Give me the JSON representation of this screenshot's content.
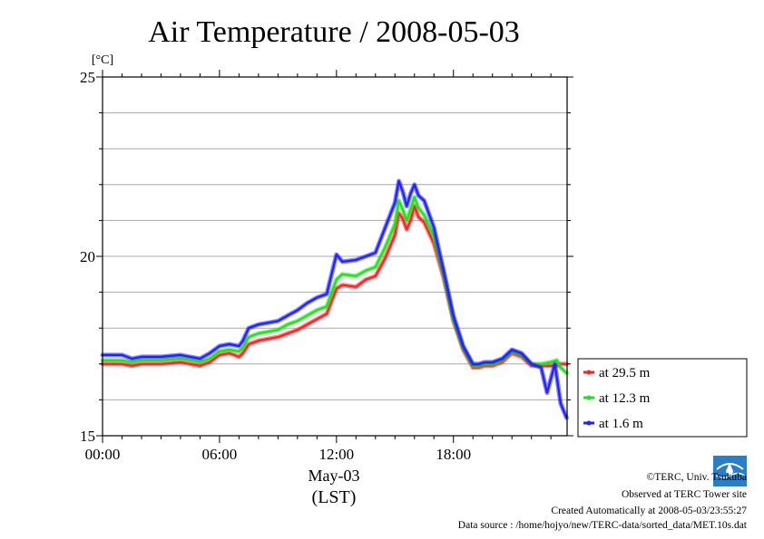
{
  "chart_data": {
    "type": "line",
    "title": "Air Temperature / 2008-05-03",
    "yunit": "[°C]",
    "ylim": [
      15,
      25
    ],
    "yticks": [
      15,
      20,
      25
    ],
    "xlim": [
      0,
      23.83
    ],
    "xticks": [
      {
        "value": 0,
        "label": "00:00"
      },
      {
        "value": 6,
        "label": "06:00"
      },
      {
        "value": 12,
        "label": "12:00"
      },
      {
        "value": 18,
        "label": "18:00"
      }
    ],
    "xlabel": "May-03",
    "xlabel2": "(LST)",
    "grid": true,
    "legend_position": "right",
    "series": [
      {
        "name": "at 29.5 m",
        "color": "#ff2020",
        "x": [
          0,
          1,
          1.5,
          2,
          3,
          4,
          4.5,
          5,
          5.5,
          6,
          6.5,
          7,
          7.2,
          7.5,
          8,
          8.5,
          9,
          9.5,
          10,
          10.5,
          11,
          11.5,
          12,
          12.3,
          13,
          13.5,
          14,
          14.5,
          15,
          15.2,
          15.4,
          15.6,
          15.8,
          16,
          16.2,
          16.5,
          17,
          17.5,
          18,
          18.5,
          19,
          19.3,
          19.6,
          20,
          20.5,
          21,
          21.5,
          22,
          22.5,
          23,
          23.3,
          23.5,
          23.8
        ],
        "values": [
          17.0,
          17.0,
          16.95,
          17.0,
          17.0,
          17.05,
          17.0,
          16.95,
          17.05,
          17.25,
          17.3,
          17.2,
          17.3,
          17.55,
          17.65,
          17.7,
          17.75,
          17.85,
          17.95,
          18.1,
          18.25,
          18.4,
          19.1,
          19.2,
          19.15,
          19.35,
          19.45,
          19.95,
          20.6,
          21.2,
          21.05,
          20.75,
          21.0,
          21.4,
          21.1,
          20.95,
          20.35,
          19.4,
          18.2,
          17.4,
          16.9,
          16.9,
          16.95,
          16.95,
          17.05,
          17.3,
          17.2,
          16.95,
          16.95,
          16.95,
          16.95,
          17.0,
          17.0
        ]
      },
      {
        "name": "at 12.3 m",
        "color": "#20e020",
        "x": [
          0,
          1,
          1.5,
          2,
          3,
          4,
          4.5,
          5,
          5.5,
          6,
          6.5,
          7,
          7.2,
          7.5,
          8,
          8.5,
          9,
          9.5,
          10,
          10.5,
          11,
          11.5,
          12,
          12.3,
          13,
          13.5,
          14,
          14.5,
          15,
          15.2,
          15.4,
          15.6,
          15.8,
          16,
          16.2,
          16.5,
          17,
          17.5,
          18,
          18.5,
          19,
          19.3,
          19.6,
          20,
          20.5,
          21,
          21.5,
          22,
          22.5,
          23,
          23.3,
          23.5,
          23.8
        ],
        "values": [
          17.1,
          17.1,
          17.05,
          17.1,
          17.1,
          17.15,
          17.1,
          17.05,
          17.15,
          17.35,
          17.4,
          17.35,
          17.45,
          17.75,
          17.85,
          17.9,
          17.95,
          18.1,
          18.2,
          18.35,
          18.5,
          18.6,
          19.35,
          19.5,
          19.45,
          19.6,
          19.7,
          20.25,
          20.9,
          21.55,
          21.3,
          21.0,
          21.3,
          21.65,
          21.35,
          21.15,
          20.55,
          19.5,
          18.25,
          17.45,
          16.95,
          16.95,
          17.0,
          17.0,
          17.1,
          17.35,
          17.25,
          17.0,
          17.0,
          17.05,
          17.1,
          16.9,
          16.75
        ]
      },
      {
        "name": "at 1.6 m",
        "color": "#2020ff",
        "x": [
          0,
          1,
          1.5,
          2,
          3,
          4,
          4.5,
          5,
          5.5,
          6,
          6.5,
          7,
          7.2,
          7.5,
          8,
          8.5,
          9,
          9.5,
          10,
          10.5,
          11,
          11.5,
          12,
          12.3,
          13,
          13.5,
          14,
          14.5,
          15,
          15.2,
          15.4,
          15.6,
          15.8,
          16,
          16.2,
          16.5,
          17,
          17.5,
          18,
          18.5,
          19,
          19.3,
          19.6,
          20,
          20.5,
          21,
          21.5,
          22,
          22.5,
          22.8,
          23,
          23.2,
          23.5,
          23.8
        ],
        "values": [
          17.25,
          17.25,
          17.15,
          17.2,
          17.2,
          17.25,
          17.2,
          17.15,
          17.3,
          17.5,
          17.55,
          17.5,
          17.65,
          18.0,
          18.1,
          18.15,
          18.2,
          18.35,
          18.5,
          18.7,
          18.85,
          18.95,
          20.05,
          19.85,
          19.9,
          20.0,
          20.1,
          20.8,
          21.5,
          22.1,
          21.8,
          21.4,
          21.75,
          22.0,
          21.7,
          21.55,
          20.8,
          19.6,
          18.35,
          17.5,
          17.0,
          17.0,
          17.05,
          17.05,
          17.15,
          17.4,
          17.3,
          17.0,
          16.9,
          16.2,
          16.6,
          17.0,
          15.9,
          15.5
        ]
      }
    ]
  },
  "footer": {
    "copyright": "©TERC, Univ. Tsukuba",
    "site": "Observed at TERC Tower site",
    "created": "Created Automatically at 2008-05-03/23:55:27",
    "source": "Data source : /home/hojyo/new/TERC-data/sorted_data/MET.10s.dat",
    "logo_text": "TERC"
  }
}
